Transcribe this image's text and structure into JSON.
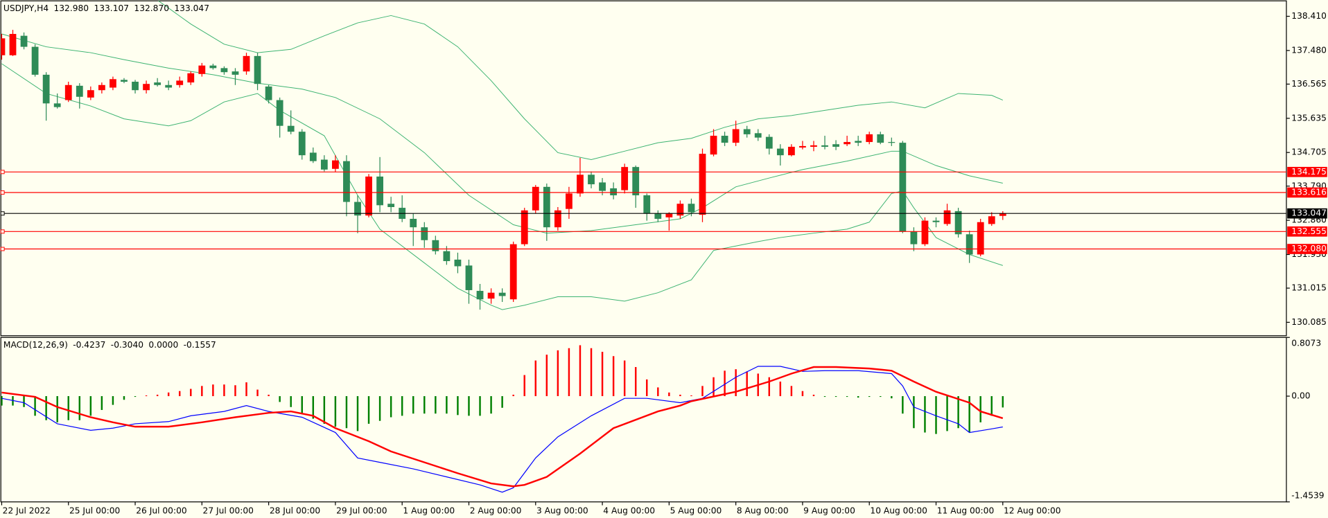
{
  "chart_data": [
    {
      "type": "candlestick",
      "title": "USDJPY,H4",
      "header_values": [
        "132.980",
        "133.107",
        "132.870",
        "133.047"
      ],
      "categories": [
        "22 Jul 2022",
        null,
        null,
        null,
        null,
        null,
        "25 Jul 00:00",
        null,
        null,
        null,
        null,
        null,
        "26 Jul 00:00",
        null,
        null,
        null,
        null,
        null,
        "27 Jul 00:00",
        null,
        null,
        null,
        null,
        null,
        "28 Jul 00:00",
        null,
        null,
        null,
        null,
        null,
        "29 Jul 00:00",
        null,
        null,
        null,
        null,
        null,
        "1 Aug 00:00",
        null,
        null,
        null,
        null,
        null,
        "2 Aug 00:00",
        null,
        null,
        null,
        null,
        null,
        "3 Aug 00:00",
        null,
        null,
        null,
        null,
        null,
        "4 Aug 00:00",
        null,
        null,
        null,
        null,
        null,
        "5 Aug 00:00",
        null,
        null,
        null,
        null,
        null,
        "8 Aug 00:00",
        null,
        null,
        null,
        null,
        null,
        "9 Aug 00:00",
        null,
        null,
        null,
        null,
        null,
        "10 Aug 00:00",
        null,
        null,
        null,
        null,
        null,
        "11 Aug 00:00",
        null,
        null,
        null,
        null,
        null,
        "12 Aug 00:00"
      ],
      "open": [
        137.35,
        137.35,
        137.88,
        137.58,
        136.82,
        136.04,
        136.13,
        136.52,
        136.2,
        136.4,
        136.47,
        136.68,
        136.63,
        136.4,
        136.61,
        136.54,
        136.54,
        136.61,
        136.84,
        137.07,
        137.0,
        136.91,
        136.91,
        137.33,
        136.5,
        136.13,
        135.43,
        135.27,
        134.7,
        134.51,
        134.26,
        134.47,
        133.36,
        132.99,
        134.05,
        133.31,
        133.2,
        132.9,
        132.67,
        132.32,
        132.02,
        131.79,
        131.63,
        130.94,
        130.73,
        130.89,
        130.71,
        132.21,
        133.13,
        133.77,
        132.67,
        133.17,
        133.59,
        134.1,
        133.89,
        133.73,
        133.68,
        134.31,
        133.54,
        133.04,
        132.94,
        132.99,
        133.31,
        133.01,
        134.65,
        135.16,
        134.97,
        135.34,
        135.23,
        135.13,
        134.81,
        134.63,
        134.84,
        134.86,
        134.9,
        134.93,
        134.93,
        135.02,
        134.99,
        135.2,
        134.99,
        134.97,
        132.55,
        132.21,
        132.85,
        132.76,
        133.11,
        132.48,
        131.93,
        132.76,
        132.98
      ],
      "high": [
        137.93,
        138.04,
        137.97,
        137.65,
        136.89,
        136.31,
        136.63,
        136.59,
        136.5,
        136.61,
        136.77,
        136.73,
        136.68,
        136.66,
        136.73,
        136.66,
        136.77,
        136.91,
        137.14,
        137.12,
        137.05,
        137.0,
        137.42,
        137.42,
        136.54,
        136.2,
        135.85,
        135.34,
        134.84,
        134.63,
        134.63,
        134.63,
        133.54,
        134.12,
        134.58,
        133.5,
        133.54,
        133.04,
        132.81,
        132.44,
        132.16,
        131.98,
        131.79,
        131.13,
        131.01,
        131.01,
        132.28,
        133.2,
        133.82,
        133.86,
        133.22,
        133.77,
        134.56,
        134.19,
        134.01,
        133.89,
        134.4,
        134.35,
        133.59,
        133.13,
        133.08,
        133.4,
        133.45,
        134.81,
        135.34,
        135.27,
        135.57,
        135.43,
        135.34,
        135.2,
        134.93,
        134.93,
        135.02,
        135.02,
        135.16,
        135.04,
        135.16,
        135.16,
        135.27,
        135.27,
        135.11,
        135.02,
        132.67,
        132.94,
        132.94,
        133.31,
        133.2,
        132.58,
        132.9,
        133.08,
        133.107
      ],
      "low": [
        137.23,
        137.33,
        137.51,
        136.77,
        135.57,
        135.9,
        136.08,
        135.9,
        136.13,
        136.31,
        136.4,
        136.59,
        136.31,
        136.31,
        136.5,
        136.4,
        136.47,
        136.54,
        136.77,
        136.96,
        136.82,
        136.54,
        136.82,
        136.4,
        136.04,
        135.11,
        135.2,
        134.51,
        134.42,
        134.19,
        134.17,
        132.97,
        132.51,
        132.94,
        133.08,
        133.08,
        132.81,
        132.16,
        132.11,
        131.93,
        131.65,
        131.42,
        130.59,
        130.43,
        130.59,
        130.64,
        130.64,
        132.16,
        133.04,
        132.3,
        132.58,
        132.9,
        133.5,
        133.73,
        133.54,
        133.43,
        133.59,
        133.2,
        132.85,
        132.81,
        132.58,
        132.9,
        132.97,
        132.81,
        134.6,
        134.88,
        134.88,
        135.11,
        135.02,
        134.65,
        134.35,
        134.6,
        134.79,
        134.74,
        134.79,
        134.77,
        134.88,
        134.88,
        134.93,
        134.93,
        134.88,
        132.51,
        132.02,
        132.16,
        132.67,
        132.71,
        132.39,
        131.7,
        131.88,
        132.71,
        132.87
      ],
      "close": [
        137.81,
        137.93,
        137.58,
        136.82,
        136.04,
        135.94,
        136.54,
        136.22,
        136.4,
        136.54,
        136.7,
        136.63,
        136.4,
        136.57,
        136.54,
        136.47,
        136.66,
        136.86,
        137.07,
        137.0,
        136.89,
        136.82,
        137.33,
        136.57,
        136.13,
        135.43,
        135.27,
        134.63,
        134.47,
        134.24,
        134.49,
        133.36,
        132.99,
        134.05,
        133.27,
        133.22,
        132.9,
        132.67,
        132.32,
        132.02,
        131.75,
        131.61,
        130.96,
        130.71,
        130.89,
        130.8,
        132.21,
        133.13,
        133.77,
        132.67,
        133.13,
        133.59,
        134.1,
        133.84,
        133.66,
        133.54,
        134.31,
        133.54,
        133.04,
        132.9,
        133.04,
        133.31,
        133.08,
        134.67,
        135.16,
        134.97,
        135.34,
        135.2,
        135.11,
        134.81,
        134.63,
        134.86,
        134.88,
        134.9,
        134.86,
        134.86,
        134.99,
        134.97,
        135.2,
        134.97,
        134.97,
        132.55,
        132.21,
        132.85,
        132.81,
        133.13,
        132.48,
        131.93,
        132.81,
        132.97,
        133.047
      ],
      "up_color": "#ff0000",
      "down_color": "#2e8b57",
      "overlays": [
        {
          "color": "#3cb371",
          "x": [
            14,
            17,
            20,
            23,
            26,
            29,
            32,
            35,
            38,
            41,
            44,
            47,
            50,
            53,
            56,
            59,
            62,
            65,
            68,
            71,
            74,
            77,
            80,
            83,
            86,
            89,
            90
          ],
          "values": [
            138.85,
            138.2,
            137.65,
            137.42,
            137.51,
            137.88,
            138.23,
            138.43,
            138.2,
            137.58,
            136.66,
            135.62,
            134.7,
            134.51,
            134.74,
            134.97,
            135.09,
            135.39,
            135.62,
            135.71,
            135.85,
            135.99,
            136.08,
            135.92,
            136.31,
            136.26,
            136.13
          ]
        },
        {
          "color": "#3cb371",
          "x": [
            0,
            4,
            8,
            11,
            15,
            19,
            23,
            27,
            30,
            34,
            38,
            42,
            46,
            49,
            53,
            57,
            61,
            63,
            66,
            69,
            72,
            76,
            80,
            81,
            84,
            87,
            90
          ],
          "values": [
            137.93,
            137.58,
            137.42,
            137.23,
            137.0,
            136.82,
            136.59,
            136.43,
            136.2,
            135.62,
            134.7,
            133.54,
            132.74,
            132.51,
            132.58,
            132.74,
            132.9,
            133.2,
            133.77,
            134.01,
            134.24,
            134.47,
            134.74,
            134.74,
            134.35,
            134.07,
            133.87
          ]
        },
        {
          "color": "#3cb371",
          "x": [
            0,
            4,
            8,
            11,
            15,
            17,
            20,
            23,
            25,
            29,
            32,
            34,
            38,
            41,
            44,
            45,
            47,
            50,
            53,
            56,
            59,
            62,
            64,
            66,
            68,
            70,
            73,
            76,
            78,
            79,
            80,
            81,
            82,
            84,
            87,
            90
          ],
          "values": [
            137.12,
            136.31,
            135.97,
            135.62,
            135.43,
            135.57,
            136.08,
            136.31,
            135.85,
            135.16,
            133.54,
            132.62,
            131.7,
            131.01,
            130.55,
            130.43,
            130.55,
            130.78,
            130.78,
            130.66,
            130.89,
            131.24,
            132.04,
            132.16,
            132.28,
            132.39,
            132.51,
            132.62,
            132.81,
            133.2,
            133.59,
            133.66,
            133.2,
            132.39,
            131.93,
            131.63
          ]
        }
      ],
      "levels": [
        {
          "value": 134.175,
          "color": "#ff0000"
        },
        {
          "value": 133.616,
          "color": "#ff0000"
        },
        {
          "value": 132.555,
          "color": "#ff0000"
        },
        {
          "value": 132.08,
          "label": "132.080",
          "color": "#ff0000"
        },
        {
          "value": 133.047,
          "color": "#000000"
        }
      ],
      "ylim": [
        129.72,
        138.83
      ],
      "yticks": [
        {
          "value": 138.41,
          "label": "138.410"
        },
        {
          "value": 137.48,
          "label": "137.480"
        },
        136.565,
        135.635,
        134.705,
        {
          "value": 133.79,
          "label": "133.790"
        },
        {
          "value": 132.86,
          "label": "132.860"
        },
        {
          "value": 131.93,
          "label": "131.930"
        },
        131.015,
        130.085
      ]
    },
    {
      "type": "macd",
      "title": "MACD(12,26,9)",
      "header_values": [
        "-0.4237",
        "-0.3040",
        "0.0000",
        "-0.1557"
      ],
      "ylim": [
        -1.4539,
        0.8073
      ],
      "yticks": [
        0.8073,
        {
          "value": 0,
          "label": "0.00"
        },
        -1.4539
      ],
      "histogram": {
        "color_positive": "#ff0000",
        "color_negative": "#008000",
        "values": [
          -0.13,
          -0.13,
          -0.15,
          -0.27,
          -0.33,
          -0.36,
          -0.33,
          -0.33,
          -0.27,
          -0.19,
          -0.12,
          -0.05,
          -0.01,
          0.01,
          0.02,
          0.05,
          0.07,
          0.1,
          0.14,
          0.16,
          0.16,
          0.15,
          0.19,
          0.09,
          0.02,
          -0.08,
          -0.15,
          -0.23,
          -0.31,
          -0.38,
          -0.42,
          -0.44,
          -0.48,
          -0.38,
          -0.34,
          -0.29,
          -0.27,
          -0.24,
          -0.24,
          -0.24,
          -0.24,
          -0.26,
          -0.27,
          -0.27,
          -0.24,
          -0.16,
          0.02,
          0.29,
          0.49,
          0.57,
          0.63,
          0.66,
          0.7,
          0.66,
          0.61,
          0.55,
          0.49,
          0.4,
          0.23,
          0.12,
          0.05,
          0.02,
          0.01,
          0.14,
          0.26,
          0.35,
          0.37,
          0.34,
          0.31,
          0.26,
          0.2,
          0.14,
          0.07,
          0.02,
          -0.01,
          -0.01,
          -0.01,
          -0.02,
          -0.01,
          -0.01,
          -0.03,
          -0.24,
          -0.44,
          -0.5,
          -0.52,
          -0.48,
          -0.44,
          -0.5,
          -0.36,
          -0.27,
          -0.1557
        ]
      },
      "lines": [
        {
          "color": "#0000ff",
          "width": 1,
          "x": [
            0,
            2,
            5,
            8,
            10,
            12,
            15,
            17,
            20,
            22,
            24,
            27,
            30,
            32,
            34,
            37,
            40,
            43,
            45,
            46,
            48,
            50,
            53,
            56,
            58,
            61,
            63,
            66,
            68,
            70,
            72,
            74,
            77,
            80,
            81,
            82,
            84,
            86,
            87,
            89,
            90
          ],
          "values": [
            -0.03,
            -0.09,
            -0.38,
            -0.47,
            -0.44,
            -0.38,
            -0.35,
            -0.27,
            -0.21,
            -0.13,
            -0.21,
            -0.29,
            -0.5,
            -0.85,
            -0.91,
            -1.0,
            -1.11,
            -1.22,
            -1.32,
            -1.26,
            -0.85,
            -0.56,
            -0.27,
            -0.03,
            -0.03,
            -0.09,
            -0.03,
            0.26,
            0.41,
            0.41,
            0.34,
            0.35,
            0.35,
            0.31,
            0.14,
            -0.15,
            -0.27,
            -0.38,
            -0.5,
            -0.45,
            -0.4237
          ]
        },
        {
          "color": "#ff0000",
          "width": 2,
          "x": [
            0,
            3,
            5,
            8,
            10,
            12,
            15,
            18,
            21,
            24,
            26,
            28,
            30,
            33,
            35,
            38,
            41,
            44,
            46,
            47,
            49,
            52,
            55,
            59,
            61,
            62,
            66,
            69,
            71,
            73,
            75,
            78,
            80,
            82,
            84,
            87,
            88,
            90
          ],
          "values": [
            0.05,
            -0.01,
            -0.15,
            -0.29,
            -0.36,
            -0.42,
            -0.42,
            -0.36,
            -0.29,
            -0.23,
            -0.21,
            -0.27,
            -0.44,
            -0.62,
            -0.76,
            -0.91,
            -1.06,
            -1.2,
            -1.24,
            -1.22,
            -1.11,
            -0.79,
            -0.44,
            -0.21,
            -0.13,
            -0.07,
            0.06,
            0.2,
            0.31,
            0.4,
            0.4,
            0.38,
            0.35,
            0.2,
            0.06,
            -0.09,
            -0.21,
            -0.304
          ]
        }
      ]
    }
  ]
}
